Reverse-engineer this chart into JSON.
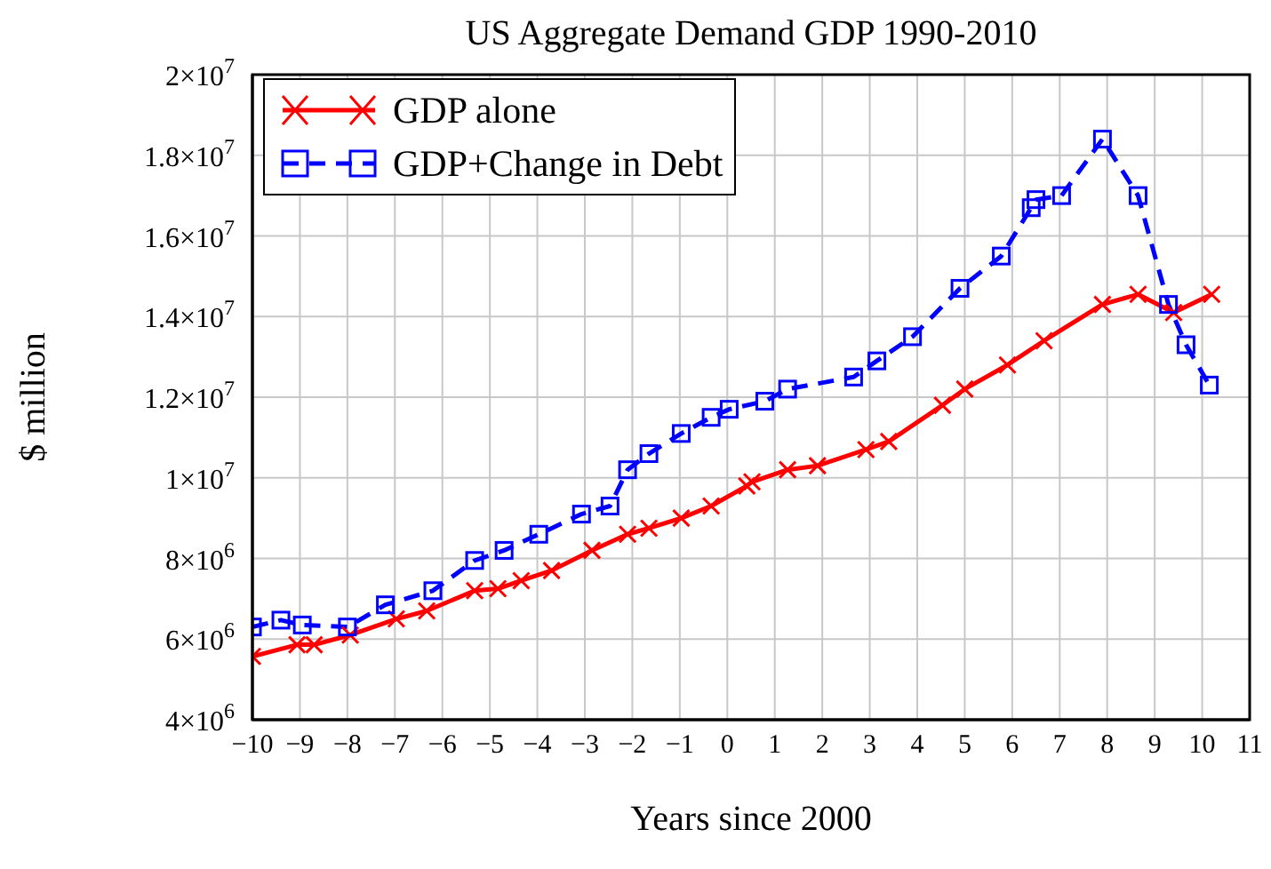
{
  "chart_data": {
    "type": "line",
    "title": "US Aggregate Demand GDP 1990-2010",
    "xlabel": "Years since 2000",
    "ylabel": "$ million",
    "xlim": [
      -10,
      11
    ],
    "xticks": [
      {
        "value": -10,
        "label": "−10"
      },
      {
        "value": -9,
        "label": "−9"
      },
      {
        "value": -8,
        "label": "−8"
      },
      {
        "value": -7,
        "label": "−7"
      },
      {
        "value": -6,
        "label": "−6"
      },
      {
        "value": -5,
        "label": "−5"
      },
      {
        "value": -4,
        "label": "−4"
      },
      {
        "value": -3,
        "label": "−3"
      },
      {
        "value": -2,
        "label": "−2"
      },
      {
        "value": -1,
        "label": "−1"
      },
      0,
      1,
      2,
      3,
      4,
      5,
      6,
      7,
      8,
      9,
      10,
      11
    ],
    "ylim": [
      4000000,
      20000000
    ],
    "yticks": [
      {
        "value": 4000000,
        "label": "4×10$^{6}$"
      },
      {
        "value": 6000000,
        "label": "6×10$^{6}$"
      },
      {
        "value": 8000000,
        "label": "8×10$^{6}$"
      },
      {
        "value": 10000000,
        "label": "1×10$^{7}$"
      },
      {
        "value": 12000000,
        "label": "1.2×10$^{7}$"
      },
      {
        "value": 14000000,
        "label": "1.4×10$^{7}$"
      },
      {
        "value": 16000000,
        "label": "1.6×10$^{7}$"
      },
      {
        "value": 18000000,
        "label": "1.8×10$^{7}$"
      },
      {
        "value": 20000000,
        "label": "2×10$^{7}$"
      }
    ],
    "grid": true,
    "legend": "top left",
    "series": [
      {
        "name": "GDP alone",
        "color": "#ff0000",
        "marker": "cross",
        "line_style": "solid",
        "x": [
          -10,
          -9.06,
          -8.7,
          -7.94,
          -6.97,
          -6.33,
          -5.32,
          -4.83,
          -4.34,
          -3.7,
          -2.85,
          -2.1,
          -1.65,
          -0.97,
          -0.34,
          0.41,
          0.52,
          1.27,
          1.9,
          2.92,
          3.4,
          4.53,
          5.0,
          5.9,
          6.67,
          7.9,
          8.65,
          9.4,
          10.2
        ],
        "values": [
          5570000,
          5860000,
          5860000,
          6100000,
          6500000,
          6700000,
          7200000,
          7250000,
          7450000,
          7700000,
          8200000,
          8600000,
          8750000,
          9000000,
          9300000,
          9800000,
          9900000,
          10200000,
          10300000,
          10700000,
          10900000,
          11800000,
          12200000,
          12800000,
          13400000,
          14300000,
          14550000,
          14100000,
          14550000
        ]
      },
      {
        "name": "GDP+Change in Debt",
        "color": "#0000ff",
        "marker": "square",
        "line_style": "dashed",
        "x": [
          -10,
          -9.4,
          -8.95,
          -8.0,
          -7.2,
          -6.2,
          -5.32,
          -4.7,
          -3.97,
          -3.07,
          -2.47,
          -2.1,
          -1.65,
          -0.97,
          -0.34,
          0.04,
          0.79,
          1.27,
          2.66,
          3.15,
          3.9,
          4.9,
          5.77,
          6.4,
          6.5,
          7.04,
          7.9,
          8.65,
          9.29,
          9.66,
          10.15
        ],
        "values": [
          6300000,
          6470000,
          6350000,
          6300000,
          6850000,
          7200000,
          7950000,
          8200000,
          8600000,
          9100000,
          9300000,
          10200000,
          10600000,
          11100000,
          11500000,
          11700000,
          11900000,
          12200000,
          12500000,
          12900000,
          13500000,
          14700000,
          15500000,
          16700000,
          16900000,
          17000000,
          18400000,
          17000000,
          14300000,
          13300000,
          12300000
        ]
      }
    ]
  }
}
